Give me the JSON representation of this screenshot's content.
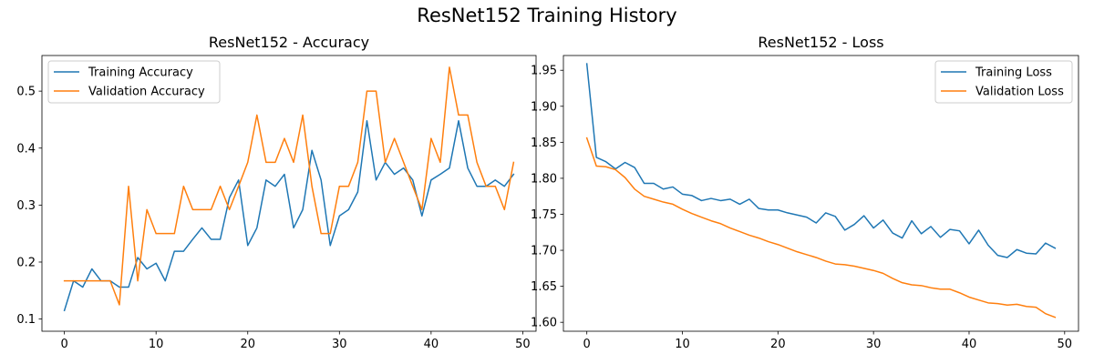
{
  "figure": {
    "title": "ResNet152 Training History"
  },
  "chart_data": [
    {
      "type": "line",
      "title": "ResNet152 - Accuracy",
      "xlabel": "",
      "ylabel": "",
      "xlim": [
        -2.45,
        51.45
      ],
      "ylim": [
        0.0786,
        0.5625
      ],
      "xticks": [
        0,
        10,
        20,
        30,
        40,
        50
      ],
      "yticks": [
        0.1,
        0.2,
        0.3,
        0.4,
        0.5
      ],
      "xtick_labels": [
        "0",
        "10",
        "20",
        "30",
        "40",
        "50"
      ],
      "ytick_labels": [
        "0.1",
        "0.2",
        "0.3",
        "0.4",
        "0.5"
      ],
      "grid": false,
      "legend_position": "top-left",
      "x": [
        0,
        1,
        2,
        3,
        4,
        5,
        6,
        7,
        8,
        9,
        10,
        11,
        12,
        13,
        14,
        15,
        16,
        17,
        18,
        19,
        20,
        21,
        22,
        23,
        24,
        25,
        26,
        27,
        28,
        29,
        30,
        31,
        32,
        33,
        34,
        35,
        36,
        37,
        38,
        39,
        40,
        41,
        42,
        43,
        44,
        45,
        46,
        47,
        48,
        49
      ],
      "series": [
        {
          "name": "Training Accuracy",
          "color": "#1f77b4",
          "values": [
            0.115,
            0.167,
            0.156,
            0.188,
            0.167,
            0.167,
            0.156,
            0.156,
            0.208,
            0.188,
            0.198,
            0.167,
            0.219,
            0.219,
            0.24,
            0.26,
            0.24,
            0.24,
            0.313,
            0.344,
            0.229,
            0.26,
            0.344,
            0.333,
            0.354,
            0.26,
            0.292,
            0.396,
            0.344,
            0.229,
            0.281,
            0.292,
            0.323,
            0.448,
            0.344,
            0.375,
            0.354,
            0.365,
            0.344,
            0.281,
            0.344,
            0.354,
            0.365,
            0.448,
            0.365,
            0.333,
            0.333,
            0.344,
            0.333,
            0.354
          ]
        },
        {
          "name": "Validation Accuracy",
          "color": "#ff7f0e",
          "values": [
            0.167,
            0.167,
            0.167,
            0.167,
            0.167,
            0.167,
            0.125,
            0.333,
            0.167,
            0.292,
            0.25,
            0.25,
            0.25,
            0.333,
            0.292,
            0.292,
            0.292,
            0.333,
            0.292,
            0.333,
            0.375,
            0.458,
            0.375,
            0.375,
            0.417,
            0.375,
            0.458,
            0.333,
            0.25,
            0.25,
            0.333,
            0.333,
            0.375,
            0.5,
            0.5,
            0.375,
            0.417,
            0.375,
            0.333,
            0.292,
            0.417,
            0.375,
            0.542,
            0.458,
            0.458,
            0.375,
            0.333,
            0.333,
            0.292,
            0.375
          ]
        }
      ]
    },
    {
      "type": "line",
      "title": "ResNet152 - Loss",
      "xlabel": "",
      "ylabel": "",
      "xlim": [
        -2.45,
        51.45
      ],
      "ylim": [
        1.5876,
        1.9705
      ],
      "xticks": [
        0,
        10,
        20,
        30,
        40,
        50
      ],
      "yticks": [
        1.6,
        1.65,
        1.7,
        1.75,
        1.8,
        1.85,
        1.9,
        1.95
      ],
      "xtick_labels": [
        "0",
        "10",
        "20",
        "30",
        "40",
        "50"
      ],
      "ytick_labels": [
        "1.60",
        "1.65",
        "1.70",
        "1.75",
        "1.80",
        "1.85",
        "1.90",
        "1.95"
      ],
      "grid": false,
      "legend_position": "top-right",
      "x": [
        0,
        1,
        2,
        3,
        4,
        5,
        6,
        7,
        8,
        9,
        10,
        11,
        12,
        13,
        14,
        15,
        16,
        17,
        18,
        19,
        20,
        21,
        22,
        23,
        24,
        25,
        26,
        27,
        28,
        29,
        30,
        31,
        32,
        33,
        34,
        35,
        36,
        37,
        38,
        39,
        40,
        41,
        42,
        43,
        44,
        45,
        46,
        47,
        48,
        49
      ],
      "series": [
        {
          "name": "Training Loss",
          "color": "#1f77b4",
          "values": [
            1.959,
            1.829,
            1.823,
            1.813,
            1.822,
            1.815,
            1.793,
            1.793,
            1.785,
            1.788,
            1.778,
            1.776,
            1.769,
            1.772,
            1.769,
            1.771,
            1.764,
            1.771,
            1.758,
            1.756,
            1.756,
            1.752,
            1.749,
            1.746,
            1.738,
            1.752,
            1.747,
            1.728,
            1.736,
            1.748,
            1.731,
            1.742,
            1.724,
            1.717,
            1.741,
            1.723,
            1.733,
            1.718,
            1.729,
            1.727,
            1.709,
            1.728,
            1.707,
            1.693,
            1.69,
            1.701,
            1.696,
            1.695,
            1.71,
            1.703
          ]
        },
        {
          "name": "Validation Loss",
          "color": "#ff7f0e",
          "values": [
            1.856,
            1.817,
            1.816,
            1.812,
            1.801,
            1.785,
            1.775,
            1.771,
            1.767,
            1.764,
            1.757,
            1.751,
            1.746,
            1.741,
            1.737,
            1.731,
            1.726,
            1.721,
            1.717,
            1.712,
            1.708,
            1.703,
            1.698,
            1.694,
            1.69,
            1.685,
            1.681,
            1.68,
            1.678,
            1.675,
            1.672,
            1.668,
            1.661,
            1.655,
            1.652,
            1.651,
            1.648,
            1.646,
            1.646,
            1.641,
            1.635,
            1.631,
            1.627,
            1.626,
            1.624,
            1.625,
            1.622,
            1.621,
            1.612,
            1.607
          ]
        }
      ]
    }
  ]
}
